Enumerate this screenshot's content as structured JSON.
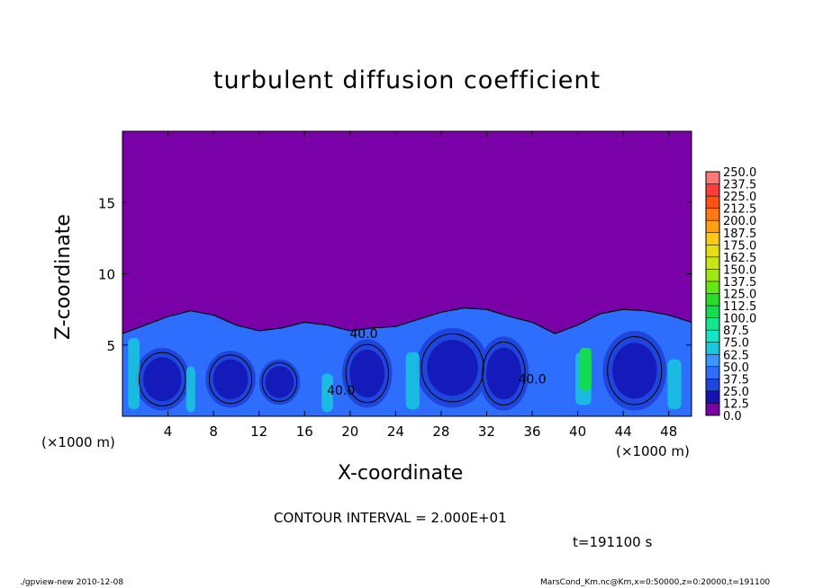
{
  "chart_data": {
    "type": "heatmap",
    "title": "turbulent diffusion coefficient",
    "xlabel": "X-coordinate",
    "ylabel": "Z-coordinate",
    "x_unit": "(×1000 m)",
    "xlim": [
      0,
      50
    ],
    "ylim": [
      0,
      20
    ],
    "x_ticks": [
      4,
      8,
      12,
      16,
      20,
      24,
      28,
      32,
      36,
      40,
      44,
      48
    ],
    "y_ticks": [
      5,
      10,
      15
    ],
    "colorbar": {
      "levels": [
        "0.0",
        "12.5",
        "25.0",
        "37.5",
        "50.0",
        "62.5",
        "75.0",
        "87.5",
        "100.0",
        "112.5",
        "125.0",
        "137.5",
        "150.0",
        "162.5",
        "175.0",
        "187.5",
        "200.0",
        "212.5",
        "225.0",
        "237.5",
        "250.0"
      ],
      "colors": [
        "#7a00a8",
        "#1414b4",
        "#1e46dc",
        "#2d6eff",
        "#3c96ff",
        "#19c8dc",
        "#14e6c8",
        "#14e68c",
        "#14dc50",
        "#28dc28",
        "#64e614",
        "#a0e614",
        "#c8e614",
        "#e6dc14",
        "#ffc814",
        "#ffa014",
        "#ff7814",
        "#ff5014",
        "#ff3c3c",
        "#ff7878"
      ]
    },
    "boundary_layer_top": [
      [
        0,
        5.8
      ],
      [
        2,
        6.4
      ],
      [
        4,
        7.0
      ],
      [
        6,
        7.4
      ],
      [
        8,
        7.1
      ],
      [
        10,
        6.4
      ],
      [
        12,
        6.0
      ],
      [
        14,
        6.2
      ],
      [
        16,
        6.6
      ],
      [
        18,
        6.4
      ],
      [
        20,
        6.0
      ],
      [
        22,
        6.2
      ],
      [
        24,
        6.3
      ],
      [
        26,
        6.8
      ],
      [
        28,
        7.3
      ],
      [
        30,
        7.6
      ],
      [
        32,
        7.5
      ],
      [
        34,
        7.0
      ],
      [
        36,
        6.6
      ],
      [
        38,
        5.8
      ],
      [
        40,
        6.4
      ],
      [
        42,
        7.2
      ],
      [
        44,
        7.5
      ],
      [
        46,
        7.4
      ],
      [
        48,
        7.1
      ],
      [
        50,
        6.6
      ]
    ],
    "contour_labels": [
      {
        "text": "40.0",
        "x": 21.2,
        "z": 5.5
      },
      {
        "text": "40.0",
        "x": 19.2,
        "z": 1.5
      },
      {
        "text": "40.0",
        "x": 36.0,
        "z": 2.3
      }
    ]
  },
  "contour_interval": "CONTOUR INTERVAL = 2.000E+01",
  "time_label": "t=191100 s",
  "footer_left": "./gpview-new  2010-12-08",
  "footer_right": "MarsCond_Km.nc@Km,x=0:50000,z=0:20000,t=191100"
}
